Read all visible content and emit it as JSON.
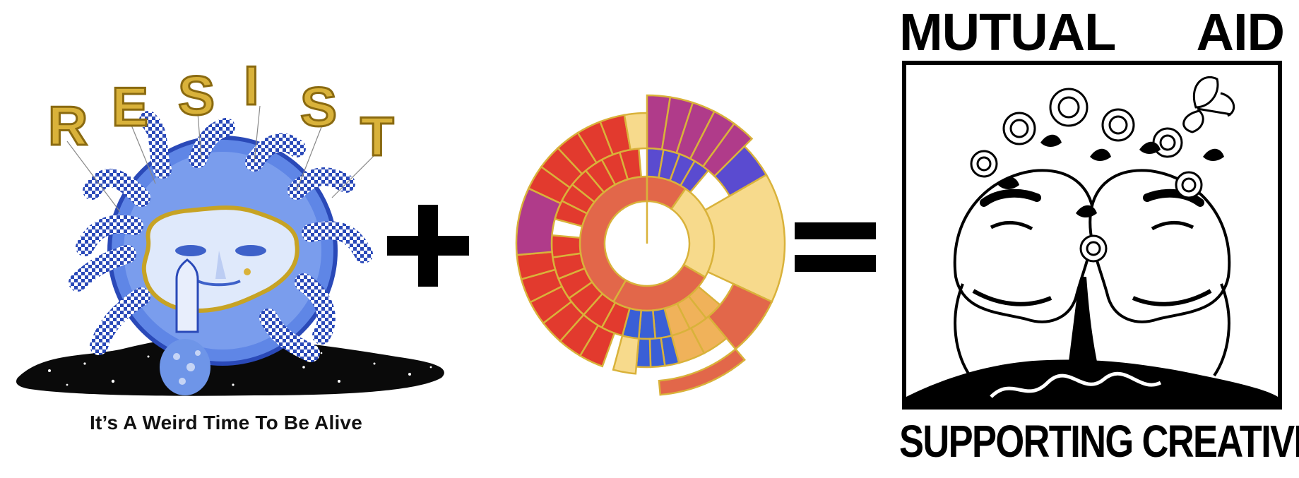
{
  "left_artwork": {
    "balloon_letters": [
      "R",
      "E",
      "S",
      "I",
      "S",
      "T"
    ],
    "caption": "It’s A Weird Time To Be Alive"
  },
  "operators": {
    "plus_icon": "plus-icon",
    "equals_icon": "equals-icon"
  },
  "right_poster": {
    "title_word_1": "MUTUAL",
    "title_word_2": "AID",
    "subtitle": "SUPPORTING CREATIVES"
  },
  "colors": {
    "blue": "#3a5fd6",
    "gold": "#d9b23a",
    "red": "#e23a2e",
    "orange": "#e2674a",
    "magenta": "#b03b8a",
    "violet": "#5a4bd0",
    "cream": "#f7da8c",
    "amber": "#f0b25a"
  }
}
